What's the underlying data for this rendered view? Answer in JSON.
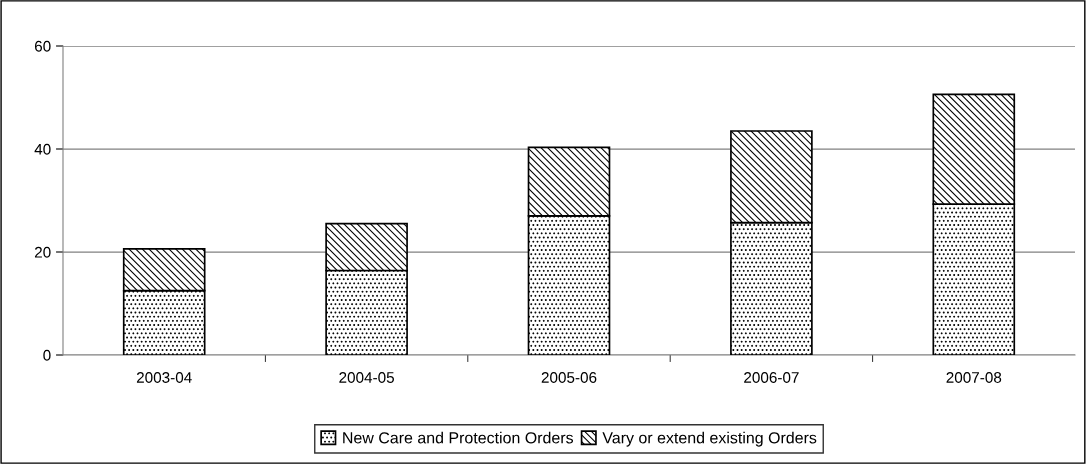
{
  "chart_data": {
    "type": "bar",
    "stacked": true,
    "categories": [
      "2003-04",
      "2004-05",
      "2005-06",
      "2006-07",
      "2007-08"
    ],
    "series": [
      {
        "name": "New Care and Protection Orders",
        "color": "#000000",
        "values": [
          12.5,
          16.4,
          27.0,
          25.7,
          29.3
        ]
      },
      {
        "name": "Vary or extend existing Orders",
        "color": "#000000",
        "values": [
          8.1,
          9.1,
          13.3,
          17.8,
          21.3
        ]
      }
    ],
    "ylim": [
      0,
      60
    ],
    "yticks": [
      0,
      20,
      40,
      60
    ],
    "grid": "y",
    "legend": "bottom"
  }
}
